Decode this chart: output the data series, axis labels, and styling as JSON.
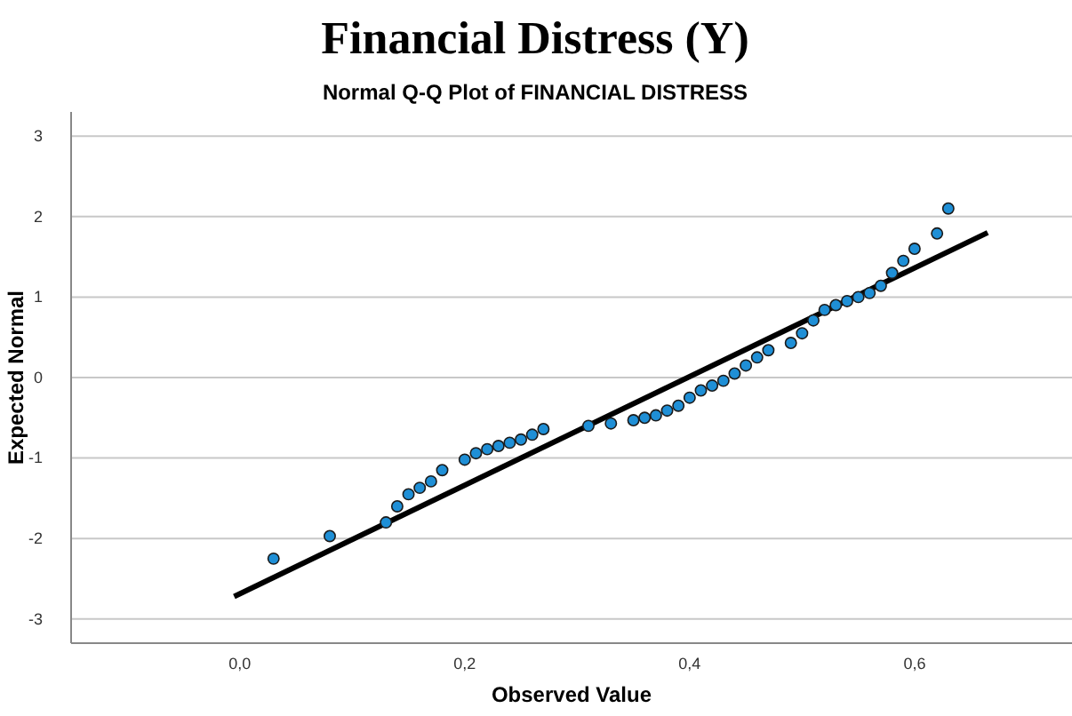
{
  "chart_data": {
    "type": "scatter",
    "title": "Financial Distress (Y)",
    "subtitle": "Normal Q-Q Plot of FINANCIAL DISTRESS",
    "xlabel": "Observed Value",
    "ylabel": "Expected Normal",
    "xlim": [
      -0.15,
      0.74
    ],
    "ylim": [
      -3.3,
      3.3
    ],
    "xticks": [
      {
        "value": 0,
        "label": "0,0"
      },
      {
        "value": 0.2,
        "label": "0,2"
      },
      {
        "value": 0.4,
        "label": "0,4"
      },
      {
        "value": 0.6,
        "label": "0,6"
      }
    ],
    "yticks": [
      -3,
      -2,
      -1,
      0,
      1,
      2,
      3
    ],
    "grid": "y",
    "marker": "circle",
    "series": [
      {
        "color": "#1f8fd6",
        "x": [
          0.03,
          0.08,
          0.13,
          0.14,
          0.15,
          0.16,
          0.17,
          0.18,
          0.2,
          0.21,
          0.22,
          0.23,
          0.24,
          0.25,
          0.26,
          0.27,
          0.31,
          0.33,
          0.35,
          0.36,
          0.37,
          0.38,
          0.39,
          0.4,
          0.41,
          0.42,
          0.43,
          0.44,
          0.45,
          0.46,
          0.47,
          0.49,
          0.5,
          0.51,
          0.52,
          0.53,
          0.54,
          0.55,
          0.56,
          0.57,
          0.58,
          0.59,
          0.6,
          0.62,
          0.63
        ],
        "values": [
          -2.25,
          -1.97,
          -1.8,
          -1.6,
          -1.45,
          -1.37,
          -1.29,
          -1.15,
          -1.02,
          -0.94,
          -0.89,
          -0.85,
          -0.81,
          -0.77,
          -0.71,
          -0.64,
          -0.6,
          -0.57,
          -0.53,
          -0.5,
          -0.47,
          -0.41,
          -0.35,
          -0.25,
          -0.16,
          -0.1,
          -0.04,
          0.05,
          0.15,
          0.25,
          0.34,
          0.43,
          0.55,
          0.71,
          0.84,
          0.9,
          0.95,
          1.0,
          1.05,
          1.14,
          1.3,
          1.45,
          1.6,
          1.79,
          2.1
        ]
      },
      {
        "type": "line",
        "color": "#000000",
        "marker": "none",
        "x": [
          -0.005,
          0.665
        ],
        "values": [
          -2.72,
          1.8
        ]
      }
    ]
  }
}
